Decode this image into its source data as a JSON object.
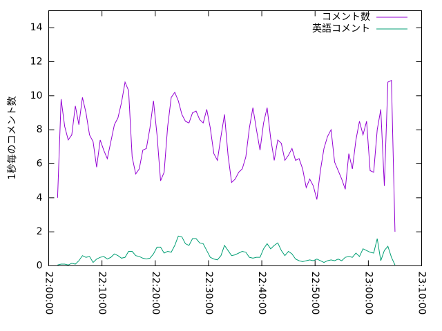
{
  "chart_data": {
    "type": "line",
    "y_label": "1秒毎のコメント数",
    "xlim": [
      "22:00:00",
      "23:10:00"
    ],
    "xticks": [
      "22:00:00",
      "22:10:00",
      "22:20:00",
      "22:30:00",
      "22:40:00",
      "22:50:00",
      "23:00:00",
      "23:10:00"
    ],
    "ylim": [
      0,
      15
    ],
    "yticks": [
      0,
      2,
      4,
      6,
      8,
      10,
      12,
      14
    ],
    "grid": false,
    "legend": "top-right",
    "x": [
      "22:01:40",
      "22:02:20",
      "22:03:00",
      "22:03:40",
      "22:04:20",
      "22:05:00",
      "22:05:40",
      "22:06:20",
      "22:07:00",
      "22:07:40",
      "22:08:20",
      "22:09:00",
      "22:09:40",
      "22:10:20",
      "22:11:00",
      "22:11:40",
      "22:12:20",
      "22:13:00",
      "22:13:40",
      "22:14:20",
      "22:15:00",
      "22:15:40",
      "22:16:20",
      "22:17:00",
      "22:17:40",
      "22:18:20",
      "22:19:00",
      "22:19:40",
      "22:20:20",
      "22:21:00",
      "22:21:40",
      "22:22:20",
      "22:23:00",
      "22:23:40",
      "22:24:20",
      "22:25:00",
      "22:25:40",
      "22:26:20",
      "22:27:00",
      "22:27:40",
      "22:28:20",
      "22:29:00",
      "22:29:40",
      "22:30:20",
      "22:31:00",
      "22:31:40",
      "22:32:20",
      "22:33:00",
      "22:33:40",
      "22:34:20",
      "22:35:00",
      "22:35:40",
      "22:36:20",
      "22:37:00",
      "22:37:40",
      "22:38:20",
      "22:39:00",
      "22:39:40",
      "22:40:20",
      "22:41:00",
      "22:41:40",
      "22:42:20",
      "22:43:00",
      "22:43:40",
      "22:44:20",
      "22:45:00",
      "22:45:40",
      "22:46:20",
      "22:47:00",
      "22:47:40",
      "22:48:20",
      "22:49:00",
      "22:49:40",
      "22:50:20",
      "22:51:00",
      "22:51:40",
      "22:52:20",
      "22:53:00",
      "22:53:40",
      "22:54:20",
      "22:55:00",
      "22:55:40",
      "22:56:20",
      "22:57:00",
      "22:57:40",
      "22:58:20",
      "22:59:00",
      "22:59:40",
      "23:00:20",
      "23:01:00",
      "23:01:40",
      "23:02:20",
      "23:03:00",
      "23:03:40",
      "23:04:20",
      "23:05:00"
    ],
    "series": [
      {
        "name": "コメント数",
        "color": "#9400d3",
        "values": [
          4.0,
          9.8,
          8.2,
          7.4,
          7.7,
          9.4,
          8.3,
          9.9,
          9.0,
          7.7,
          7.3,
          5.8,
          7.4,
          6.8,
          6.3,
          7.3,
          8.3,
          8.7,
          9.6,
          10.8,
          10.3,
          6.4,
          5.4,
          5.7,
          6.8,
          6.9,
          8.1,
          9.7,
          7.7,
          5.0,
          5.5,
          8.2,
          9.9,
          10.2,
          9.7,
          8.9,
          8.5,
          8.4,
          9.0,
          9.1,
          8.6,
          8.4,
          9.2,
          8.1,
          6.6,
          6.2,
          7.6,
          8.9,
          6.5,
          4.9,
          5.1,
          5.5,
          5.7,
          6.4,
          8.1,
          9.3,
          8.0,
          6.8,
          8.4,
          9.3,
          7.5,
          6.2,
          7.4,
          7.2,
          6.2,
          6.5,
          6.9,
          6.2,
          6.3,
          5.7,
          4.6,
          5.1,
          4.7,
          3.9,
          5.6,
          6.9,
          7.6,
          8.0,
          6.1,
          5.6,
          5.1,
          4.5,
          6.6,
          5.7,
          7.4,
          8.5,
          7.7,
          8.5,
          5.6,
          5.5,
          8.0,
          9.2,
          4.7,
          10.8,
          10.9,
          2.0
        ]
      },
      {
        "name": "英語コメント",
        "color": "#009e73",
        "values": [
          0.05,
          0.1,
          0.1,
          0.05,
          0.15,
          0.1,
          0.3,
          0.6,
          0.5,
          0.55,
          0.2,
          0.4,
          0.5,
          0.55,
          0.4,
          0.5,
          0.7,
          0.6,
          0.45,
          0.5,
          0.85,
          0.85,
          0.6,
          0.55,
          0.45,
          0.4,
          0.45,
          0.7,
          1.1,
          1.1,
          0.75,
          0.85,
          0.8,
          1.2,
          1.75,
          1.7,
          1.3,
          1.2,
          1.6,
          1.6,
          1.35,
          1.3,
          0.9,
          0.5,
          0.4,
          0.35,
          0.6,
          1.2,
          0.9,
          0.6,
          0.65,
          0.75,
          0.85,
          0.8,
          0.5,
          0.45,
          0.5,
          0.5,
          1.0,
          1.3,
          1.0,
          1.2,
          1.35,
          0.9,
          0.6,
          0.85,
          0.7,
          0.4,
          0.3,
          0.25,
          0.3,
          0.35,
          0.3,
          0.4,
          0.3,
          0.2,
          0.3,
          0.35,
          0.3,
          0.4,
          0.3,
          0.5,
          0.55,
          0.5,
          0.75,
          0.55,
          1.0,
          0.9,
          0.8,
          0.75,
          1.6,
          0.3,
          0.9,
          1.15,
          0.5,
          0.05
        ]
      }
    ]
  }
}
